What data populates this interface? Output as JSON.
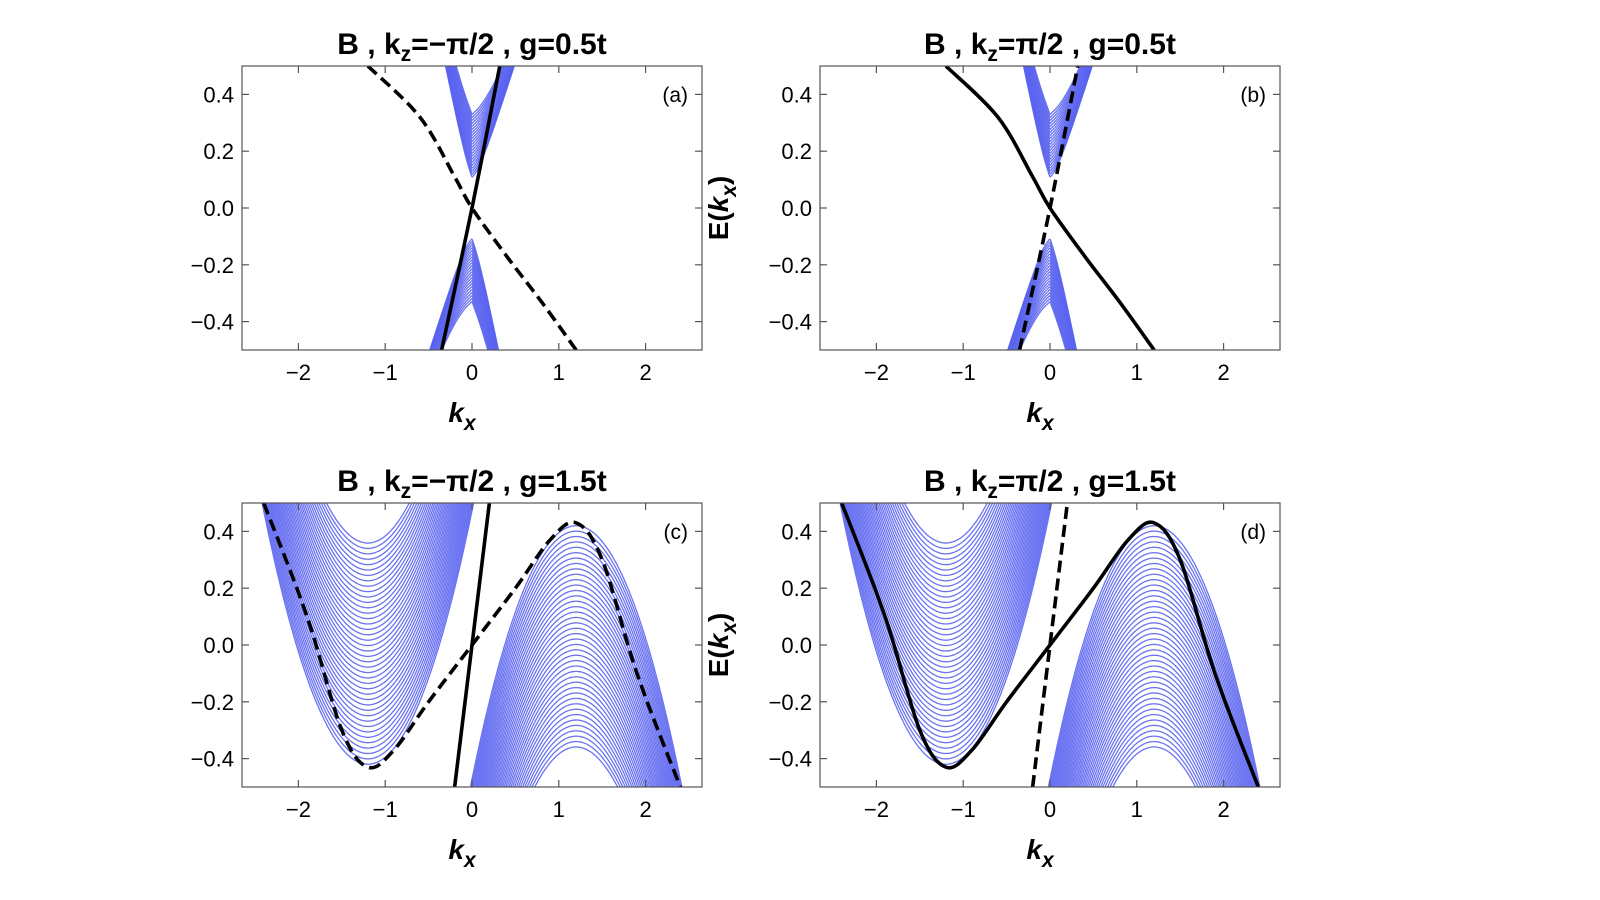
{
  "chart_data": [
    {
      "type": "line",
      "panel_label": "(a)",
      "title": {
        "prefix": "B , k",
        "sub": "z",
        "suffix": "=−π/2 , g=0.5t"
      },
      "params": {
        "kz": -1.5708,
        "g": 0.5
      },
      "xlabel": {
        "main": "k",
        "sub": "x"
      },
      "ylabel": null,
      "xlim": [
        -2.65,
        2.65
      ],
      "ylim": [
        -0.5,
        0.5
      ],
      "xticks": [
        -2,
        -1,
        0,
        1,
        2
      ],
      "xtick_labels": [
        "−2",
        "−1",
        "0",
        "1",
        "2"
      ],
      "yticks": [
        0.4,
        0.2,
        0.0,
        -0.2,
        -0.4
      ],
      "ytick_labels": [
        "0.4",
        "0.2",
        "0.0",
        "−0.2",
        "−0.4"
      ],
      "bulk_color": "#5a64f0",
      "series": [
        {
          "style": "solid",
          "x": [
            -0.35,
            0.0,
            0.32
          ],
          "y": [
            -0.5,
            0.0,
            0.5
          ]
        },
        {
          "style": "dashed",
          "x": [
            -1.2,
            -0.6,
            -0.2,
            0.0,
            0.4,
            0.8,
            1.2
          ],
          "y": [
            0.5,
            0.32,
            0.11,
            0.0,
            -0.17,
            -0.33,
            -0.5
          ]
        }
      ]
    },
    {
      "type": "line",
      "panel_label": "(b)",
      "title": {
        "prefix": "B , k",
        "sub": "z",
        "suffix": "=π/2 , g=0.5t"
      },
      "params": {
        "kz": 1.5708,
        "g": 0.5
      },
      "xlabel": {
        "main": "k",
        "sub": "x"
      },
      "ylabel": {
        "prefix": "E(",
        "main": "k",
        "sub": "x",
        "suffix": ")"
      },
      "xlim": [
        -2.65,
        2.65
      ],
      "ylim": [
        -0.5,
        0.5
      ],
      "xticks": [
        -2,
        -1,
        0,
        1,
        2
      ],
      "xtick_labels": [
        "−2",
        "−1",
        "0",
        "1",
        "2"
      ],
      "yticks": [
        0.4,
        0.2,
        0.0,
        -0.2,
        -0.4
      ],
      "ytick_labels": [
        "0.4",
        "0.2",
        "0.0",
        "−0.2",
        "−0.4"
      ],
      "bulk_color": "#5a64f0",
      "series": [
        {
          "style": "dashed",
          "x": [
            -0.35,
            0.0,
            0.32
          ],
          "y": [
            -0.5,
            0.0,
            0.5
          ]
        },
        {
          "style": "solid",
          "x": [
            -1.2,
            -0.6,
            -0.2,
            0.0,
            0.4,
            0.8,
            1.2
          ],
          "y": [
            0.5,
            0.32,
            0.11,
            0.0,
            -0.17,
            -0.33,
            -0.5
          ]
        }
      ]
    },
    {
      "type": "line",
      "panel_label": "(c)",
      "title": {
        "prefix": "B , k",
        "sub": "z",
        "suffix": "=−π/2 , g=1.5t"
      },
      "params": {
        "kz": -1.5708,
        "g": 1.5
      },
      "xlabel": {
        "main": "k",
        "sub": "x"
      },
      "ylabel": null,
      "xlim": [
        -2.65,
        2.65
      ],
      "ylim": [
        -0.5,
        0.5
      ],
      "xticks": [
        -2,
        -1,
        0,
        1,
        2
      ],
      "xtick_labels": [
        "−2",
        "−1",
        "0",
        "1",
        "2"
      ],
      "yticks": [
        0.4,
        0.2,
        0.0,
        -0.2,
        -0.4
      ],
      "ytick_labels": [
        "0.4",
        "0.2",
        "0.0",
        "−0.2",
        "−0.4"
      ],
      "bulk_color": "#5a64f0",
      "series": [
        {
          "style": "solid",
          "x": [
            -0.2,
            0.0,
            0.2
          ],
          "y": [
            -0.5,
            0.0,
            0.5
          ]
        },
        {
          "style": "dashed",
          "x": [
            -2.4,
            -1.9,
            -1.5,
            -1.2,
            -0.9,
            -0.5,
            0.0,
            0.5,
            0.9,
            1.2,
            1.5,
            1.9,
            2.4
          ],
          "y": [
            0.5,
            0.1,
            -0.3,
            -0.43,
            -0.37,
            -0.2,
            0.0,
            0.2,
            0.37,
            0.43,
            0.3,
            -0.1,
            -0.5
          ]
        }
      ]
    },
    {
      "type": "line",
      "panel_label": "(d)",
      "title": {
        "prefix": "B , k",
        "sub": "z",
        "suffix": "=π/2 , g=1.5t"
      },
      "params": {
        "kz": 1.5708,
        "g": 1.5
      },
      "xlabel": {
        "main": "k",
        "sub": "x"
      },
      "ylabel": {
        "prefix": "E(",
        "main": "k",
        "sub": "x",
        "suffix": ")"
      },
      "xlim": [
        -2.65,
        2.65
      ],
      "ylim": [
        -0.5,
        0.5
      ],
      "xticks": [
        -2,
        -1,
        0,
        1,
        2
      ],
      "xtick_labels": [
        "−2",
        "−1",
        "0",
        "1",
        "2"
      ],
      "yticks": [
        0.4,
        0.2,
        0.0,
        -0.2,
        -0.4
      ],
      "ytick_labels": [
        "0.4",
        "0.2",
        "0.0",
        "−0.2",
        "−0.4"
      ],
      "bulk_color": "#5a64f0",
      "series": [
        {
          "style": "dashed",
          "x": [
            -0.2,
            0.0,
            0.2
          ],
          "y": [
            -0.5,
            0.0,
            0.5
          ]
        },
        {
          "style": "solid",
          "x": [
            -2.4,
            -1.9,
            -1.5,
            -1.2,
            -0.9,
            -0.5,
            0.0,
            0.5,
            0.9,
            1.2,
            1.5,
            1.9,
            2.4
          ],
          "y": [
            0.5,
            0.1,
            -0.3,
            -0.43,
            -0.37,
            -0.2,
            0.0,
            0.2,
            0.37,
            0.43,
            0.3,
            -0.1,
            -0.5
          ]
        }
      ]
    }
  ]
}
